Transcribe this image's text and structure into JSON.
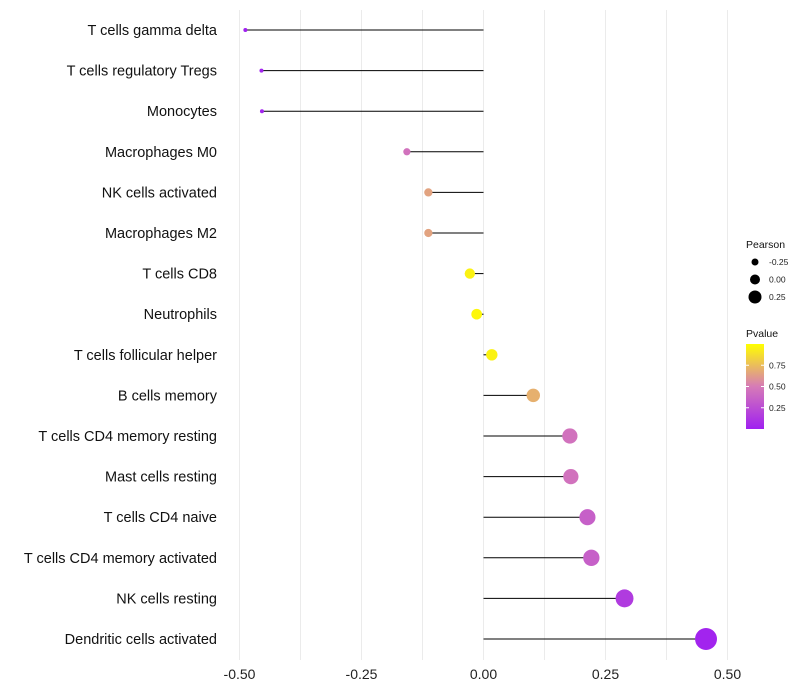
{
  "chart_data": {
    "type": "lollipop",
    "title": "",
    "xlabel": "",
    "ylabel": "",
    "xlim": [
      -0.5,
      0.5
    ],
    "xticks": [
      -0.5,
      -0.25,
      0.0,
      0.25,
      0.5
    ],
    "xtick_labels": [
      "-0.50",
      "-0.25",
      "0.00",
      "0.25",
      "0.50"
    ],
    "grid": true,
    "categories": [
      "T cells gamma delta",
      "T cells regulatory  Tregs",
      "Monocytes",
      "Macrophages M0",
      "NK cells activated",
      "Macrophages M2",
      "T cells CD8",
      "Neutrophils",
      "T cells follicular helper",
      "B cells memory",
      "T cells CD4 memory resting",
      "Mast cells resting",
      "T cells CD4 naive",
      "T cells CD4 memory activated",
      "NK cells resting",
      "Dendritic cells activated"
    ],
    "values": [
      -0.488,
      -0.455,
      -0.454,
      -0.157,
      -0.113,
      -0.113,
      -0.028,
      -0.014,
      0.017,
      0.102,
      0.177,
      0.179,
      0.213,
      0.221,
      0.289,
      0.456
    ],
    "pvalues": [
      0.002,
      0.02,
      0.02,
      0.45,
      0.65,
      0.65,
      0.95,
      0.97,
      0.95,
      0.7,
      0.45,
      0.45,
      0.35,
      0.35,
      0.15,
      0.02
    ],
    "legend": {
      "position": "right",
      "size_title": "Pearson",
      "size_values": [
        -0.25,
        0.0,
        0.25
      ],
      "size_labels": [
        "-0.25",
        "0.00",
        "0.25"
      ],
      "color_title": "Pvalue",
      "color_ticks": [
        0.75,
        0.5,
        0.25
      ],
      "color_labels": [
        "0.75",
        "0.50",
        "0.25"
      ],
      "color_range": [
        0.0,
        1.0
      ],
      "color_low": "#a020f0",
      "color_mid": "#d67bb7",
      "color_high": "#ffff00"
    },
    "colors": {
      "stem": "#000000",
      "grid": "#ebebeb",
      "legend_dot": "#000000"
    }
  }
}
